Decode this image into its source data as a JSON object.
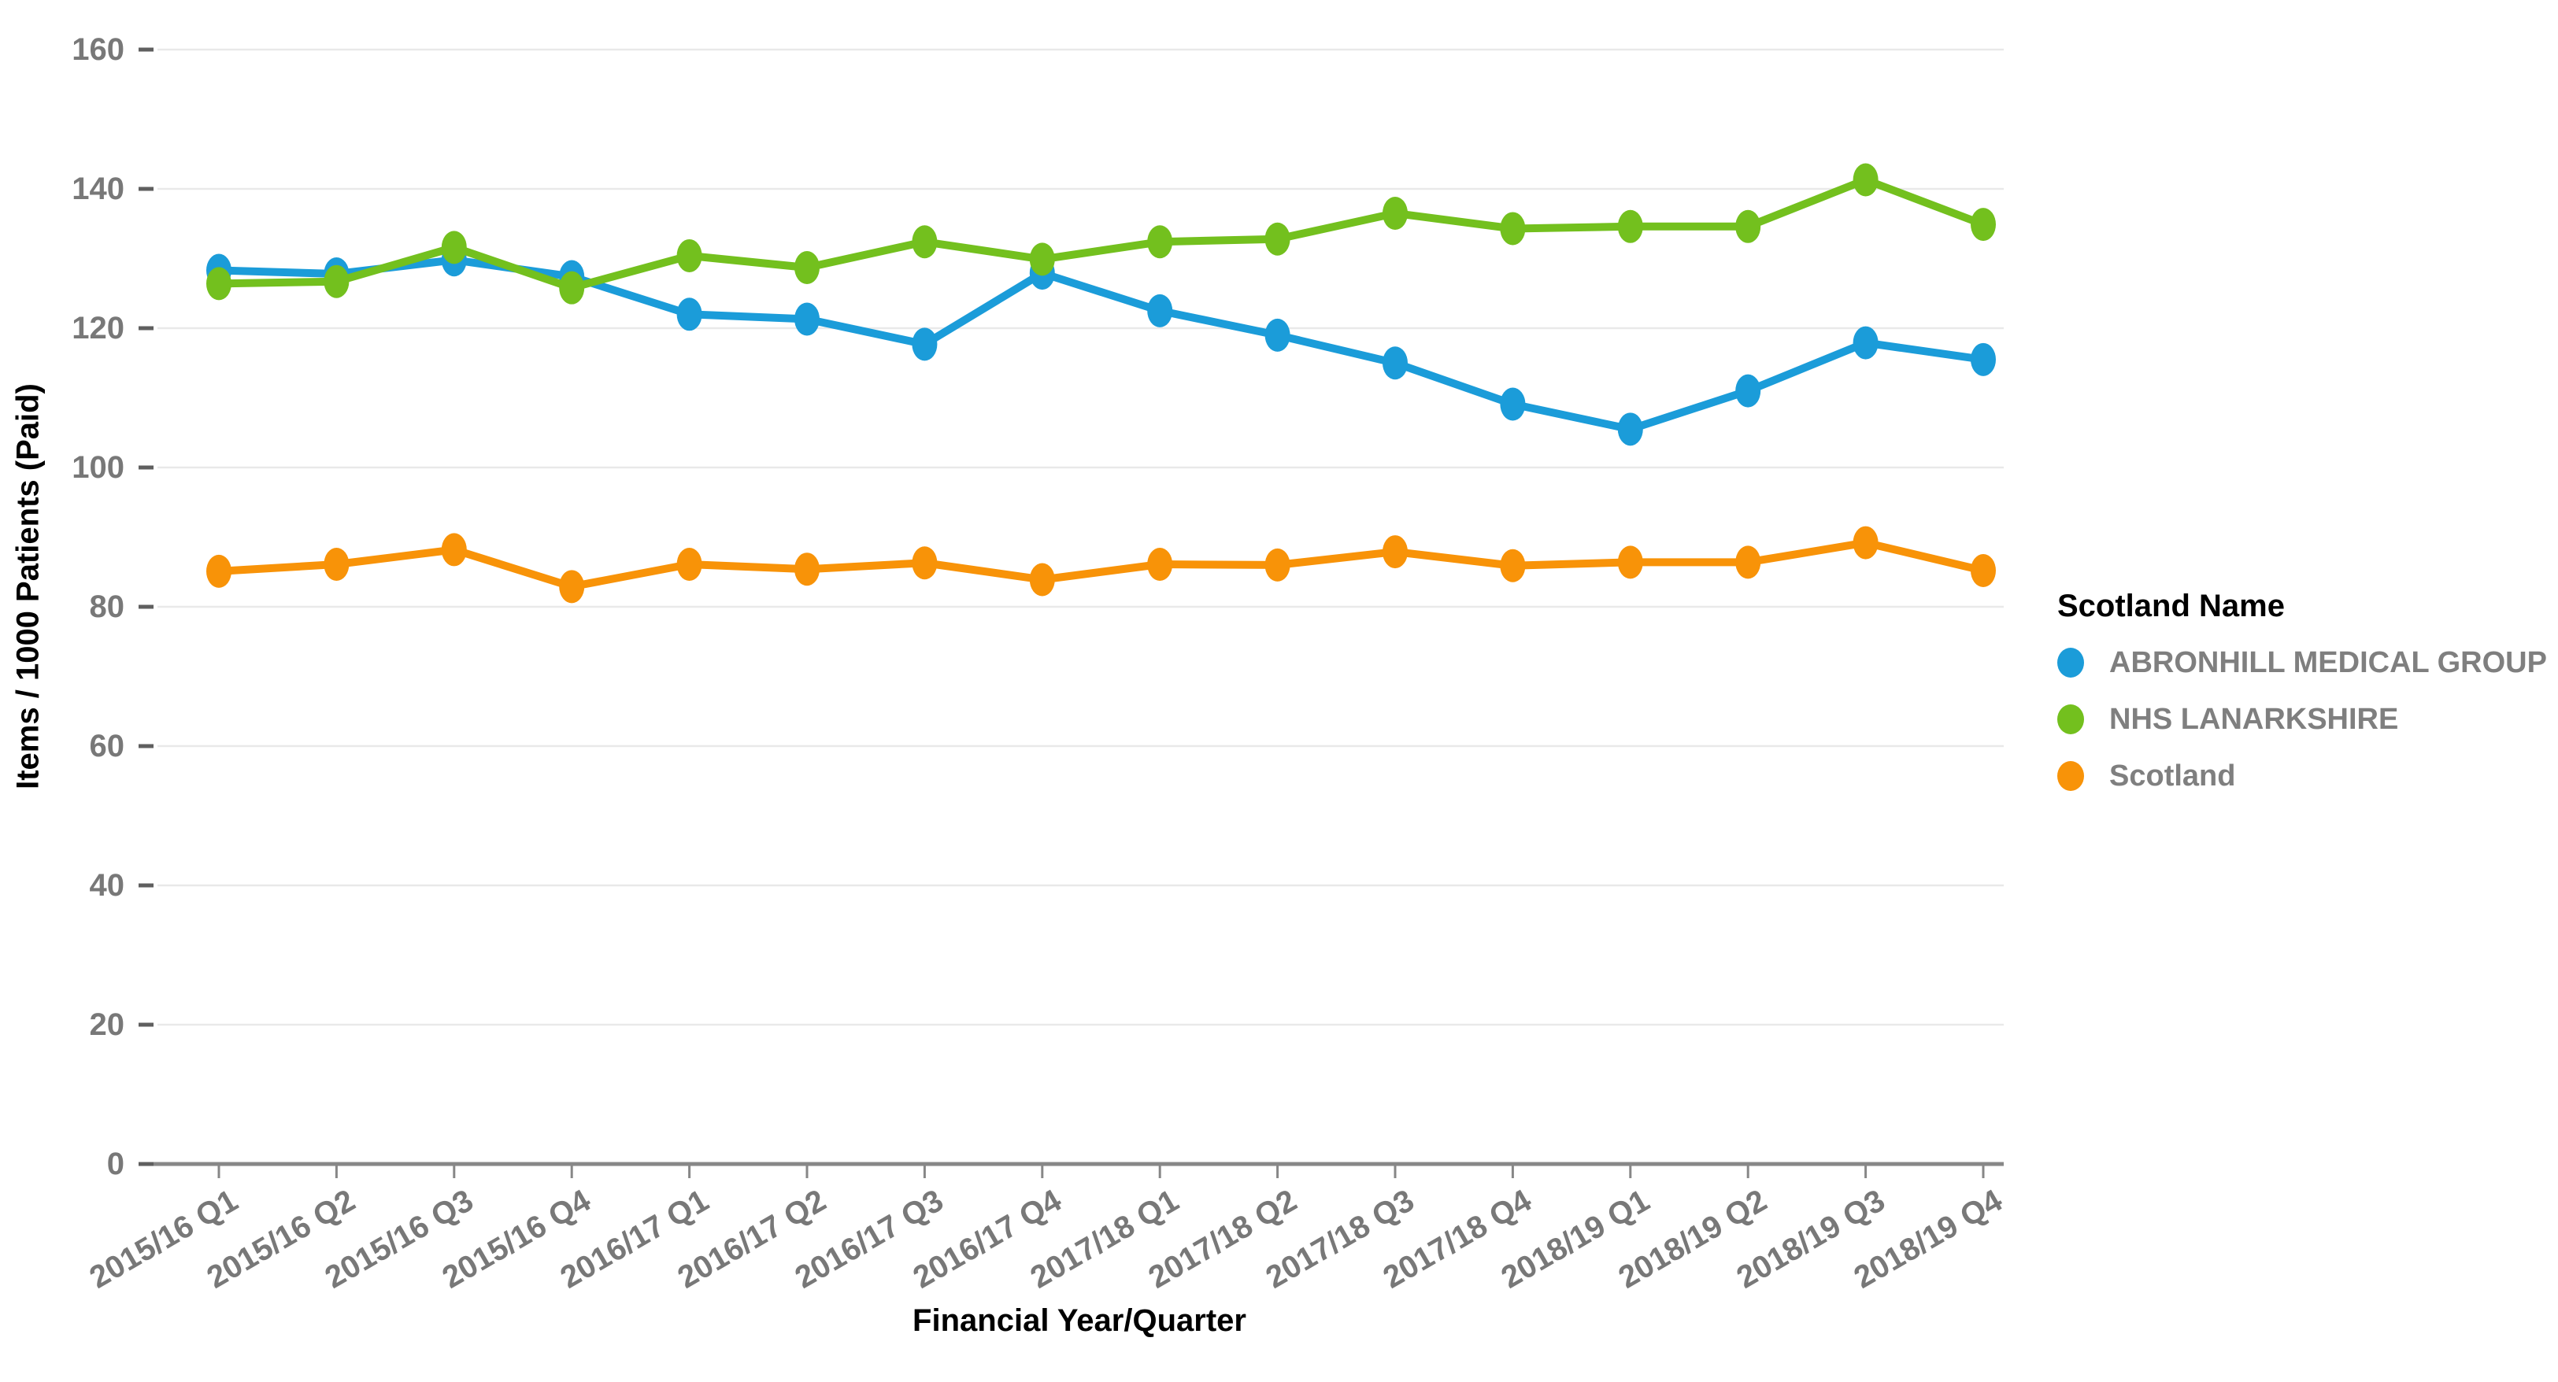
{
  "chart_data": {
    "type": "line",
    "title": "",
    "xlabel": "Financial Year/Quarter",
    "ylabel": "Items / 1000 Patients (Paid)",
    "categories": [
      "2015/16 Q1",
      "2015/16 Q2",
      "2015/16 Q3",
      "2015/16 Q4",
      "2016/17 Q1",
      "2016/17 Q2",
      "2016/17 Q3",
      "2016/17 Q4",
      "2017/18 Q1",
      "2017/18 Q2",
      "2017/18 Q3",
      "2017/18 Q4",
      "2018/19 Q1",
      "2018/19 Q2",
      "2018/19 Q3",
      "2018/19 Q4"
    ],
    "series": [
      {
        "name": "ABRONHILL MEDICAL GROUP",
        "color": "#1b9cd9",
        "values": [
          128.3,
          127.8,
          129.8,
          127.4,
          122.0,
          121.3,
          117.7,
          127.9,
          122.5,
          119.0,
          115.0,
          109.1,
          105.5,
          111.0,
          117.9,
          115.5
        ]
      },
      {
        "name": "NHS LANARKSHIRE",
        "color": "#73c01e",
        "values": [
          126.4,
          126.7,
          131.6,
          125.8,
          130.4,
          128.7,
          132.4,
          129.9,
          132.4,
          132.8,
          136.5,
          134.3,
          134.6,
          134.6,
          141.3,
          134.9
        ]
      },
      {
        "name": "Scotland",
        "color": "#f89308",
        "values": [
          85.1,
          86.1,
          88.2,
          82.9,
          86.1,
          85.4,
          86.3,
          83.9,
          86.1,
          86.0,
          87.9,
          85.9,
          86.4,
          86.4,
          89.2,
          85.2
        ]
      }
    ],
    "ylim": [
      0,
      160
    ],
    "yticks": [
      0,
      20,
      40,
      60,
      80,
      100,
      120,
      140,
      160
    ],
    "grid": "horizontal",
    "legend_title": "Scotland Name",
    "legend_position": "right"
  },
  "colors": {
    "gridline": "#e9e9e9",
    "axis_line": "#878787",
    "tick_dash": "#5f5f5f",
    "tick_label": "#787878",
    "legend_text": "#7f7f7f",
    "title_text": "#000000",
    "background": "#ffffff"
  }
}
